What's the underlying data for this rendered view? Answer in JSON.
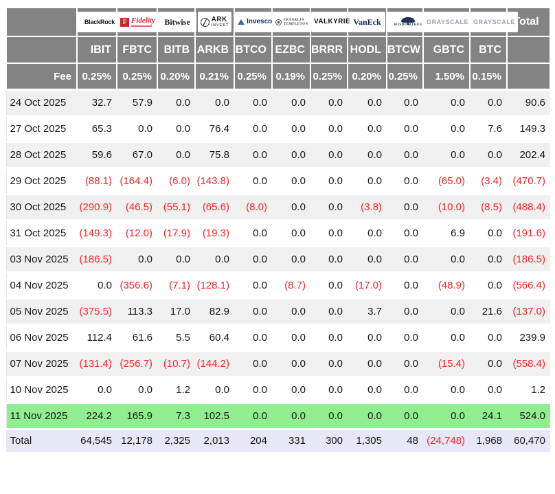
{
  "colors": {
    "header_bg": "#838383",
    "stripe": "#f0f0f0",
    "highlight_green": "#90ee90",
    "total_bg": "#e7e7f7",
    "negative_red": "#f42525"
  },
  "logos": {
    "blackrock": "BlackRock",
    "fidelity_f": "F",
    "fidelity": "Fidelity",
    "bitwise": "Bitwise",
    "ark_name": "ARK",
    "ark_sub": "INVEST",
    "invesco": "Invesco",
    "franklin_1": "FRANKLIN",
    "franklin_2": "TEMPLETON",
    "valkyrie": "VALKYRIE",
    "vaneck": "VanEck",
    "wisdomtree": "WISDOMTREE",
    "grayscale": "GRAYSCALE",
    "grayscale2": "GRAYSCALE"
  },
  "chart_data": {
    "type": "table",
    "providers": [
      "BlackRock",
      "Fidelity",
      "Bitwise",
      "ARK Invest",
      "Invesco",
      "Franklin Templeton",
      "Valkyrie",
      "VanEck",
      "WisdomTree",
      "Grayscale",
      "Grayscale"
    ],
    "tickers": [
      "IBIT",
      "FBTC",
      "BITB",
      "ARKB",
      "BTCO",
      "EZBC",
      "BRRR",
      "HODL",
      "BTCW",
      "GBTC",
      "BTC"
    ],
    "total_header": "Total",
    "fee_label": "Fee",
    "fees": [
      "0.25%",
      "0.25%",
      "0.20%",
      "0.21%",
      "0.25%",
      "0.19%",
      "0.25%",
      "0.20%",
      "0.25%",
      "1.50%",
      "0.15%"
    ],
    "rows": [
      {
        "date": "24 Oct 2025",
        "values": [
          "32.7",
          "57.9",
          "0.0",
          "0.0",
          "0.0",
          "0.0",
          "0.0",
          "0.0",
          "0.0",
          "0.0",
          "0.0",
          "90.6"
        ]
      },
      {
        "date": "27 Oct 2025",
        "values": [
          "65.3",
          "0.0",
          "0.0",
          "76.4",
          "0.0",
          "0.0",
          "0.0",
          "0.0",
          "0.0",
          "0.0",
          "7.6",
          "149.3"
        ]
      },
      {
        "date": "28 Oct 2025",
        "values": [
          "59.6",
          "67.0",
          "0.0",
          "75.8",
          "0.0",
          "0.0",
          "0.0",
          "0.0",
          "0.0",
          "0.0",
          "0.0",
          "202.4"
        ]
      },
      {
        "date": "29 Oct 2025",
        "values": [
          "(88.1)",
          "(164.4)",
          "(6.0)",
          "(143.8)",
          "0.0",
          "0.0",
          "0.0",
          "0.0",
          "0.0",
          "(65.0)",
          "(3.4)",
          "(470.7)"
        ]
      },
      {
        "date": "30 Oct 2025",
        "values": [
          "(290.9)",
          "(46.5)",
          "(55.1)",
          "(65.6)",
          "(8.0)",
          "0.0",
          "0.0",
          "(3.8)",
          "0.0",
          "(10.0)",
          "(8.5)",
          "(488.4)"
        ]
      },
      {
        "date": "31 Oct 2025",
        "values": [
          "(149.3)",
          "(12.0)",
          "(17.9)",
          "(19.3)",
          "0.0",
          "0.0",
          "0.0",
          "0.0",
          "0.0",
          "6.9",
          "0.0",
          "(191.6)"
        ]
      },
      {
        "date": "03 Nov 2025",
        "values": [
          "(186.5)",
          "0.0",
          "0.0",
          "0.0",
          "0.0",
          "0.0",
          "0.0",
          "0.0",
          "0.0",
          "0.0",
          "0.0",
          "(186.5)"
        ]
      },
      {
        "date": "04 Nov 2025",
        "values": [
          "0.0",
          "(356.6)",
          "(7.1)",
          "(128.1)",
          "0.0",
          "(8.7)",
          "0.0",
          "(17.0)",
          "0.0",
          "(48.9)",
          "0.0",
          "(566.4)"
        ]
      },
      {
        "date": "05 Nov 2025",
        "values": [
          "(375.5)",
          "113.3",
          "17.0",
          "82.9",
          "0.0",
          "0.0",
          "0.0",
          "3.7",
          "0.0",
          "0.0",
          "21.6",
          "(137.0)"
        ]
      },
      {
        "date": "06 Nov 2025",
        "values": [
          "112.4",
          "61.6",
          "5.5",
          "60.4",
          "0.0",
          "0.0",
          "0.0",
          "0.0",
          "0.0",
          "0.0",
          "0.0",
          "239.9"
        ]
      },
      {
        "date": "07 Nov 2025",
        "values": [
          "(131.4)",
          "(256.7)",
          "(10.7)",
          "(144.2)",
          "0.0",
          "0.0",
          "0.0",
          "0.0",
          "0.0",
          "(15.4)",
          "0.0",
          "(558.4)"
        ]
      },
      {
        "date": "10 Nov 2025",
        "values": [
          "0.0",
          "0.0",
          "1.2",
          "0.0",
          "0.0",
          "0.0",
          "0.0",
          "0.0",
          "0.0",
          "0.0",
          "0.0",
          "1.2"
        ]
      },
      {
        "date": "11 Nov 2025",
        "highlight": true,
        "values": [
          "224.2",
          "165.9",
          "7.3",
          "102.5",
          "0.0",
          "0.0",
          "0.0",
          "0.0",
          "0.0",
          "0.0",
          "24.1",
          "524.0"
        ]
      }
    ],
    "total_row": {
      "label": "Total",
      "values": [
        "64,545",
        "12,178",
        "2,325",
        "2,013",
        "204",
        "331",
        "300",
        "1,305",
        "48",
        "(24,748)",
        "1,968",
        "60,470"
      ]
    }
  }
}
